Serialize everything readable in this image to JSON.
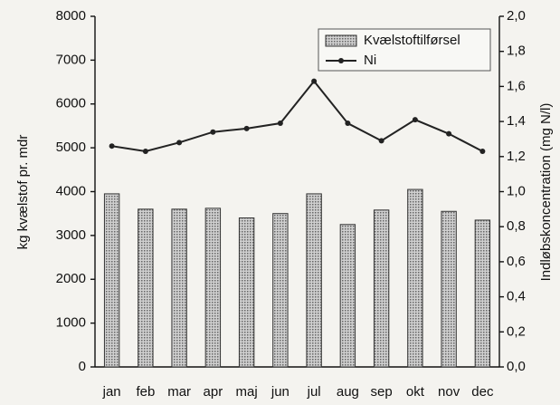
{
  "chart_data": {
    "type": "bar",
    "categories": [
      "jan",
      "feb",
      "mar",
      "apr",
      "maj",
      "jun",
      "jul",
      "aug",
      "sep",
      "okt",
      "nov",
      "dec"
    ],
    "series": [
      {
        "name": "Kvælstoftilførsel",
        "type": "bar",
        "color": "#9a9a9a",
        "values": [
          3950,
          3600,
          3600,
          3620,
          3400,
          3500,
          3950,
          3250,
          3580,
          4050,
          3550,
          3350
        ]
      },
      {
        "name": "Ni",
        "type": "line",
        "axis": "y2",
        "color": "#222222",
        "values": [
          1.26,
          1.23,
          1.28,
          1.34,
          1.36,
          1.39,
          1.63,
          1.39,
          1.29,
          1.41,
          1.33,
          1.23
        ]
      }
    ],
    "y_label": "kg kvælstof pr. mdr",
    "y2_label": "Indløbskoncentration (mg N/l)",
    "ylim": [
      0,
      8000
    ],
    "yticks": [
      0,
      1000,
      2000,
      3000,
      4000,
      5000,
      6000,
      7000,
      8000
    ],
    "y2lim": [
      0,
      2.0
    ],
    "y2ticks": [
      {
        "value": 0,
        "label": "0,0"
      },
      {
        "value": 0.2,
        "label": "0,2"
      },
      {
        "value": 0.4,
        "label": "0,4"
      },
      {
        "value": 0.6,
        "label": "0,6"
      },
      {
        "value": 0.8,
        "label": "0,8"
      },
      {
        "value": 1.0,
        "label": "1,0"
      },
      {
        "value": 1.2,
        "label": "1,2"
      },
      {
        "value": 1.4,
        "label": "1,4"
      },
      {
        "value": 1.6,
        "label": "1,6"
      },
      {
        "value": 1.8,
        "label": "1,8"
      },
      {
        "value": 2.0,
        "label": "2,0"
      }
    ],
    "legend": "upper right"
  }
}
